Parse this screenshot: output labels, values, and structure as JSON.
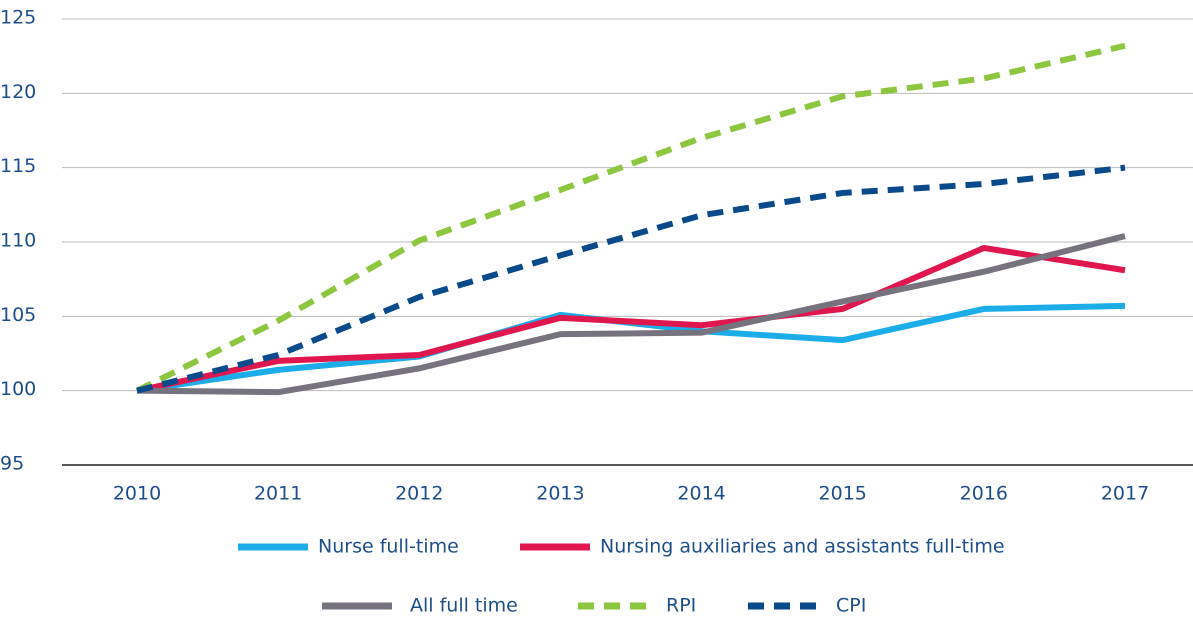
{
  "chart_data": {
    "type": "line",
    "categories": [
      "2010",
      "2011",
      "2012",
      "2013",
      "2014",
      "2015",
      "2016",
      "2017"
    ],
    "ylim": [
      95,
      125
    ],
    "yticks": [
      95,
      100,
      105,
      110,
      115,
      120,
      125
    ],
    "grid": true,
    "series": [
      {
        "name": "Nurse full-time",
        "color": "#1cade8",
        "dashed": false,
        "values": [
          100,
          101.4,
          102.3,
          105.1,
          104.0,
          103.4,
          105.5,
          105.7
        ]
      },
      {
        "name": "Nursing auxiliaries and assistants full-time",
        "color": "#e0174f",
        "dashed": false,
        "values": [
          100,
          102.0,
          102.4,
          104.9,
          104.4,
          105.5,
          109.6,
          108.1
        ]
      },
      {
        "name": "All full time",
        "color": "#77737e",
        "dashed": false,
        "values": [
          100,
          99.9,
          101.5,
          103.8,
          103.9,
          106.0,
          108.0,
          110.4
        ]
      },
      {
        "name": "RPI",
        "color": "#8dc63f",
        "dashed": true,
        "values": [
          100,
          104.7,
          110.1,
          113.5,
          117.0,
          119.8,
          121.0,
          123.2
        ]
      },
      {
        "name": "CPI",
        "color": "#0a4a8a",
        "dashed": true,
        "values": [
          100,
          102.4,
          106.3,
          109.1,
          111.8,
          113.3,
          113.9,
          115.0
        ]
      }
    ]
  }
}
